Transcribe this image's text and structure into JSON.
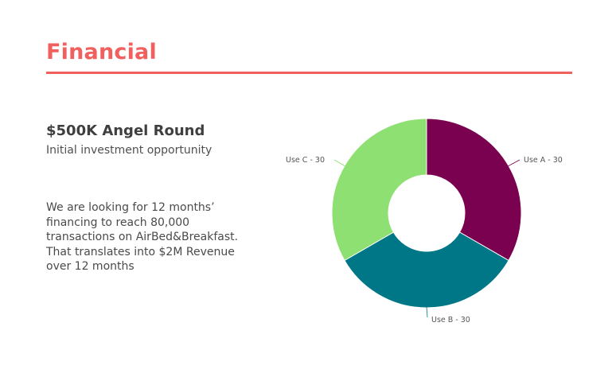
{
  "header": {
    "title": "Financial"
  },
  "intro": {
    "heading": "$500K Angel Round",
    "subheading": "Initial investment opportunity"
  },
  "description": {
    "lines": [
      "We are looking for 12 months’",
      "financing to reach 80,000",
      "transactions on AirBed&Breakfast.",
      "That translates into $2M Revenue",
      "over 12 months"
    ]
  },
  "colors": {
    "accent": "#f0605e",
    "use_a": "#7a0050",
    "use_b": "#007787",
    "use_c": "#8fe073"
  },
  "chart_data": {
    "type": "pie",
    "style": "donut",
    "slices": [
      {
        "name": "Use A",
        "value": 30,
        "label": "Use A - 30",
        "color": "#7a0050"
      },
      {
        "name": "Use B",
        "value": 30,
        "label": "Use B - 30",
        "color": "#007787"
      },
      {
        "name": "Use C",
        "value": 30,
        "label": "Use C - 30",
        "color": "#8fe073"
      }
    ],
    "start_angle_deg": 0,
    "direction": "clockwise",
    "legend": "none",
    "data_labels": "outside"
  }
}
